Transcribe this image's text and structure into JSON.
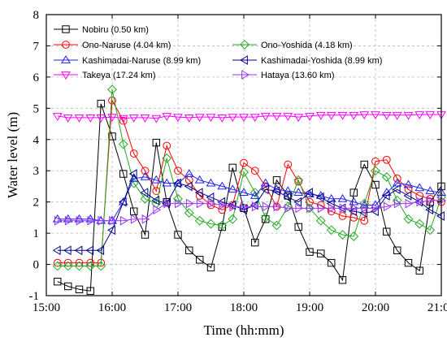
{
  "chart_data": {
    "type": "line",
    "xlabel": "Time (hh:mm)",
    "ylabel": "Water level (m)",
    "xlim": [
      15.0,
      21.0
    ],
    "ylim": [
      -1,
      8
    ],
    "x_ticks": [
      15,
      16,
      17,
      18,
      19,
      20,
      21
    ],
    "x_tick_labels": [
      "15:00",
      "16:00",
      "17:00",
      "18:00",
      "19:00",
      "20:00",
      "21:00"
    ],
    "y_ticks": [
      -1,
      0,
      1,
      2,
      3,
      4,
      5,
      6,
      7,
      8
    ],
    "grid": true,
    "legend_placement": "top",
    "series": [
      {
        "name": "Nobiru (0.50 km)",
        "color": "#000000",
        "marker": "square",
        "x": [
          15.17,
          15.33,
          15.5,
          15.67,
          15.83,
          16.0,
          16.17,
          16.33,
          16.5,
          16.67,
          16.83,
          17.0,
          17.17,
          17.33,
          17.5,
          17.67,
          17.83,
          18.0,
          18.17,
          18.33,
          18.5,
          18.67,
          18.83,
          19.0,
          19.17,
          19.33,
          19.5,
          19.67,
          19.83,
          20.0,
          20.17,
          20.33,
          20.5,
          20.67,
          20.83,
          21.0
        ],
        "y": [
          -0.55,
          -0.7,
          -0.8,
          -0.85,
          5.15,
          4.1,
          2.9,
          1.7,
          0.95,
          3.9,
          2.0,
          0.95,
          0.45,
          0.15,
          -0.1,
          1.2,
          3.1,
          1.8,
          0.7,
          1.45,
          2.7,
          2.2,
          1.2,
          0.4,
          0.35,
          0.05,
          -0.5,
          2.3,
          3.2,
          2.55,
          1.05,
          0.45,
          0.05,
          -0.2,
          2.0,
          2.5
        ]
      },
      {
        "name": "Ono-Naruse (4.04 km)",
        "color": "#ff0000",
        "marker": "circle",
        "x": [
          15.17,
          15.33,
          15.5,
          15.67,
          15.83,
          16.0,
          16.17,
          16.33,
          16.5,
          16.67,
          16.83,
          17.0,
          17.17,
          17.33,
          17.5,
          17.67,
          17.83,
          18.0,
          18.17,
          18.33,
          18.5,
          18.67,
          18.83,
          19.0,
          19.17,
          19.33,
          19.5,
          19.67,
          19.83,
          20.0,
          20.17,
          20.33,
          20.5,
          20.67,
          20.83,
          21.0
        ],
        "y": [
          0.05,
          0.05,
          0.05,
          0.05,
          0.05,
          5.25,
          4.6,
          3.55,
          3.0,
          2.35,
          3.8,
          3.0,
          2.7,
          2.2,
          1.9,
          1.75,
          1.9,
          3.25,
          3.0,
          2.5,
          1.85,
          3.2,
          2.65,
          2.0,
          1.9,
          1.7,
          1.55,
          1.5,
          1.4,
          3.3,
          3.35,
          2.75,
          2.4,
          2.2,
          2.1,
          2.0
        ]
      },
      {
        "name": "Ono-Yoshida (4.18 km)",
        "color": "#22aa22",
        "marker": "diamond",
        "x": [
          15.17,
          15.33,
          15.5,
          15.67,
          15.83,
          16.0,
          16.17,
          16.33,
          16.5,
          16.67,
          16.83,
          17.0,
          17.17,
          17.33,
          17.5,
          17.67,
          17.83,
          18.0,
          18.17,
          18.33,
          18.5,
          18.67,
          18.83,
          19.0,
          19.17,
          19.33,
          19.5,
          19.67,
          19.83,
          20.0,
          20.17,
          20.33,
          20.5,
          20.67,
          20.83,
          21.0
        ],
        "y": [
          -0.05,
          -0.05,
          -0.05,
          -0.05,
          -0.05,
          5.6,
          3.85,
          2.6,
          2.1,
          1.95,
          3.4,
          2.1,
          1.65,
          1.4,
          1.3,
          1.25,
          1.45,
          2.95,
          2.3,
          1.5,
          1.25,
          1.85,
          2.7,
          1.8,
          1.4,
          1.1,
          0.95,
          0.9,
          1.95,
          3.0,
          2.8,
          2.05,
          1.45,
          1.3,
          1.1,
          2.15
        ]
      },
      {
        "name": "Kashimadai-Naruse (8.99 km)",
        "color": "#2222ee",
        "marker": "triangle-up",
        "x": [
          15.17,
          15.33,
          15.5,
          15.67,
          15.83,
          16.0,
          16.17,
          16.33,
          16.5,
          16.67,
          16.83,
          17.0,
          17.17,
          17.33,
          17.5,
          17.67,
          17.83,
          18.0,
          18.17,
          18.33,
          18.5,
          18.67,
          18.83,
          19.0,
          19.17,
          19.33,
          19.5,
          19.67,
          19.83,
          20.0,
          20.17,
          20.33,
          20.5,
          20.67,
          20.83,
          21.0
        ],
        "y": [
          1.45,
          1.45,
          1.45,
          1.45,
          1.4,
          1.4,
          2.0,
          2.75,
          2.8,
          2.7,
          2.6,
          2.6,
          2.9,
          2.7,
          2.6,
          2.5,
          2.4,
          2.3,
          2.2,
          2.6,
          2.4,
          2.35,
          2.3,
          2.25,
          2.2,
          2.1,
          2.1,
          2.0,
          1.9,
          1.9,
          2.3,
          2.6,
          2.55,
          2.45,
          2.35,
          2.3
        ]
      },
      {
        "name": "Kashimadai-Yoshida (8.99 km)",
        "color": "#000088",
        "marker": "triangle-left",
        "x": [
          15.17,
          15.33,
          15.5,
          15.67,
          15.83,
          16.0,
          16.17,
          16.33,
          16.5,
          16.67,
          16.83,
          17.0,
          17.17,
          17.33,
          17.5,
          17.67,
          17.83,
          18.0,
          18.17,
          18.33,
          18.5,
          18.67,
          18.83,
          19.0,
          19.17,
          19.33,
          19.5,
          19.67,
          19.83,
          20.0,
          20.17,
          20.33,
          20.5,
          20.67,
          20.83,
          21.0
        ],
        "y": [
          0.45,
          0.45,
          0.45,
          0.45,
          0.45,
          1.1,
          2.0,
          2.9,
          2.3,
          2.05,
          1.95,
          2.6,
          2.5,
          2.3,
          2.15,
          2.0,
          1.9,
          1.75,
          1.9,
          2.4,
          2.35,
          2.15,
          2.0,
          2.3,
          2.15,
          1.95,
          1.8,
          1.7,
          1.65,
          1.7,
          2.2,
          2.4,
          2.2,
          2.0,
          1.75,
          1.55
        ]
      },
      {
        "name": "Takeya (17.24 km)",
        "color": "#ff00ff",
        "marker": "triangle-down",
        "x": [
          15.17,
          15.33,
          15.5,
          15.67,
          15.83,
          16.0,
          16.17,
          16.33,
          16.5,
          16.67,
          16.83,
          17.0,
          17.17,
          17.33,
          17.5,
          17.67,
          17.83,
          18.0,
          18.17,
          18.33,
          18.5,
          18.67,
          18.83,
          19.0,
          19.17,
          19.33,
          19.5,
          19.67,
          19.83,
          20.0,
          20.17,
          20.33,
          20.5,
          20.67,
          20.83,
          21.0
        ],
        "y": [
          4.75,
          4.7,
          4.7,
          4.7,
          4.7,
          4.72,
          4.68,
          4.7,
          4.7,
          4.68,
          4.75,
          4.72,
          4.7,
          4.72,
          4.72,
          4.7,
          4.72,
          4.72,
          4.72,
          4.75,
          4.75,
          4.75,
          4.72,
          4.75,
          4.78,
          4.78,
          4.78,
          4.78,
          4.8,
          4.8,
          4.78,
          4.78,
          4.78,
          4.8,
          4.8,
          4.8
        ]
      },
      {
        "name": "Hataya (13.60 km)",
        "color": "#9933ff",
        "marker": "triangle-right",
        "x": [
          15.17,
          15.33,
          15.5,
          15.67,
          15.83,
          16.0,
          16.17,
          16.33,
          16.5,
          16.67,
          16.83,
          17.0,
          17.17,
          17.33,
          17.5,
          17.67,
          17.83,
          18.0,
          18.17,
          18.33,
          18.5,
          18.67,
          18.83,
          19.0,
          19.17,
          19.33,
          19.5,
          19.67,
          19.83,
          20.0,
          20.17,
          20.33,
          20.5,
          20.67,
          20.83,
          21.0
        ],
        "y": [
          1.4,
          1.4,
          1.4,
          1.4,
          1.4,
          1.4,
          1.4,
          1.45,
          1.45,
          1.75,
          1.95,
          1.95,
          1.95,
          1.95,
          1.95,
          1.9,
          1.85,
          1.85,
          1.85,
          1.85,
          1.85,
          1.8,
          1.8,
          1.8,
          1.8,
          1.8,
          1.8,
          1.8,
          1.8,
          1.8,
          1.85,
          1.95,
          1.95,
          2.0,
          2.05,
          2.05
        ]
      }
    ]
  }
}
